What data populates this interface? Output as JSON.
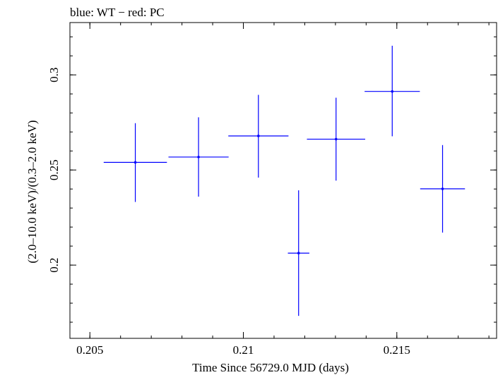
{
  "chart_data": {
    "type": "scatter",
    "title": "blue: WT − red: PC",
    "xlabel": "Time Since 56729.0 MJD (days)",
    "ylabel": "(2.0–10.0 keV)/(0.3–2.0 keV)",
    "xlim": [
      0.20435,
      0.21825
    ],
    "ylim": [
      0.1615,
      0.3275
    ],
    "x_ticks": [
      0.205,
      0.21,
      0.215
    ],
    "x_tick_labels": [
      "0.205",
      "0.21",
      "0.215"
    ],
    "y_ticks": [
      0.2,
      0.25,
      0.3
    ],
    "y_tick_labels": [
      "0.2",
      "0.25",
      "0.3"
    ],
    "grid": false,
    "series": [
      {
        "color": "#0000ff",
        "points": [
          {
            "x": 0.20648,
            "xerr": 0.00103,
            "y": 0.254,
            "yerr_low": 0.0208,
            "yerr_high": 0.0206
          },
          {
            "x": 0.20854,
            "xerr": 0.00098,
            "y": 0.2568,
            "yerr_low": 0.0208,
            "yerr_high": 0.0209
          },
          {
            "x": 0.21049,
            "xerr": 0.00098,
            "y": 0.2679,
            "yerr_low": 0.0219,
            "yerr_high": 0.0216
          },
          {
            "x": 0.2118,
            "xerr": 0.00035,
            "y": 0.2063,
            "yerr_low": 0.033,
            "yerr_high": 0.033
          },
          {
            "x": 0.21302,
            "xerr": 0.00095,
            "y": 0.2662,
            "yerr_low": 0.0218,
            "yerr_high": 0.0218
          },
          {
            "x": 0.21485,
            "xerr": 0.0009,
            "y": 0.2913,
            "yerr_low": 0.0236,
            "yerr_high": 0.024
          },
          {
            "x": 0.21649,
            "xerr": 0.00073,
            "y": 0.2401,
            "yerr_low": 0.023,
            "yerr_high": 0.023
          }
        ]
      }
    ]
  }
}
